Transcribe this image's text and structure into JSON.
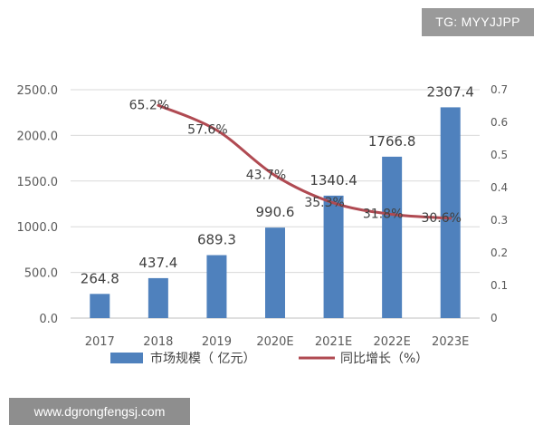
{
  "watermarks": {
    "top": "TG: MYYJJPP",
    "bottom": "www.dgrongfengsj.com"
  },
  "colors": {
    "bar": "#4f81bd",
    "line": "#b04a52",
    "grid": "#d9d9d9",
    "axis": "#bfbfbf"
  },
  "chart_data": {
    "type": "bar",
    "categories": [
      "2017",
      "2018",
      "2019",
      "2020E",
      "2021E",
      "2022E",
      "2023E"
    ],
    "series": [
      {
        "name": "市场规模（亿元）",
        "type": "bar",
        "axis": "left",
        "values": [
          264.8,
          437.4,
          689.3,
          990.6,
          1340.4,
          1766.8,
          2307.4
        ],
        "labels": [
          "264.8",
          "437.4",
          "689.3",
          "990.6",
          "1340.4",
          "1766.8",
          "2307.4"
        ]
      },
      {
        "name": "同比增长（%）",
        "type": "line",
        "axis": "right",
        "values": [
          null,
          0.652,
          0.576,
          0.437,
          0.353,
          0.318,
          0.306
        ],
        "labels": [
          "",
          "65.2%",
          "57.6%",
          "43.7%",
          "35.3%",
          "31.8%",
          "30.6%"
        ]
      }
    ],
    "y_left": {
      "ylim": [
        0,
        2500
      ],
      "ticks": [
        0,
        500,
        1000,
        1500,
        2000,
        2500
      ],
      "tick_labels": [
        "0.0",
        "500.0",
        "1000.0",
        "1500.0",
        "2000.0",
        "2500.0"
      ]
    },
    "y_right": {
      "ylim": [
        0,
        0.7
      ],
      "ticks": [
        0,
        0.1,
        0.2,
        0.3,
        0.4,
        0.5,
        0.6,
        0.7
      ],
      "tick_labels": [
        "0",
        "0.1",
        "0.2",
        "0.3",
        "0.4",
        "0.5",
        "0.6",
        "0.7"
      ]
    },
    "grid": true,
    "legend": {
      "position": "bottom",
      "bar_label": "市场规模（  亿元）",
      "line_label": "同比增长（%）"
    }
  }
}
